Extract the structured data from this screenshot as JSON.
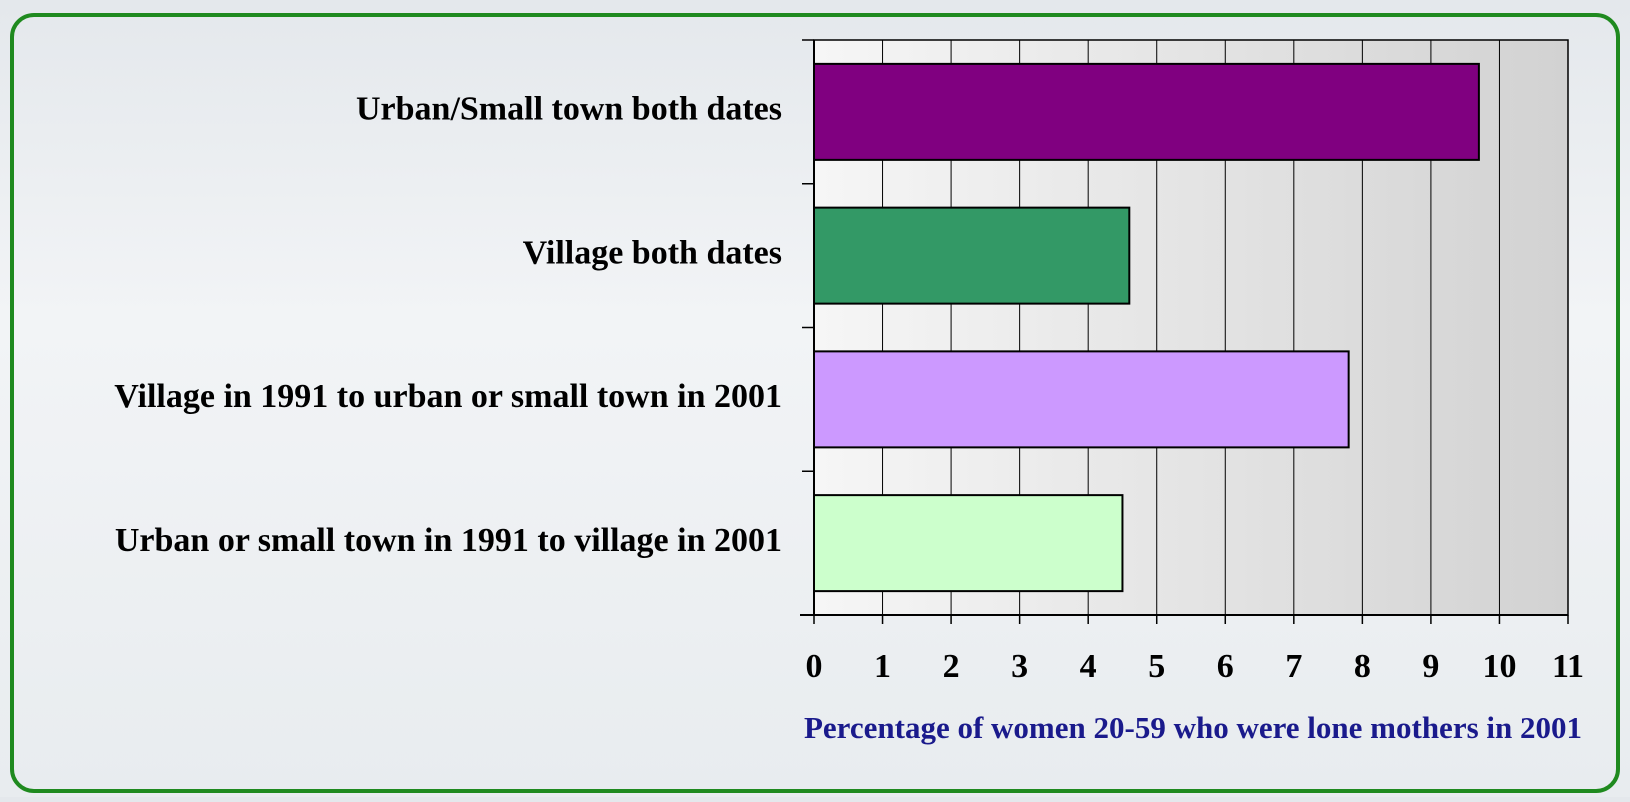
{
  "chart_data": {
    "type": "bar",
    "orientation": "horizontal",
    "categories": [
      "Urban/Small town both dates",
      "Village both dates",
      "Village in 1991 to urban or small town in 2001",
      "Urban or small town in 1991 to village in 2001"
    ],
    "values": [
      9.7,
      4.6,
      7.8,
      4.5
    ],
    "colors": [
      "#800080",
      "#339966",
      "#cc99ff",
      "#ccffcc"
    ],
    "xlim": [
      0,
      11
    ],
    "xticks": [
      0,
      1,
      2,
      3,
      4,
      5,
      6,
      7,
      8,
      9,
      10,
      11
    ],
    "xlabel": "Percentage of women 20-59 who were lone mothers in 2001",
    "grid": true
  }
}
